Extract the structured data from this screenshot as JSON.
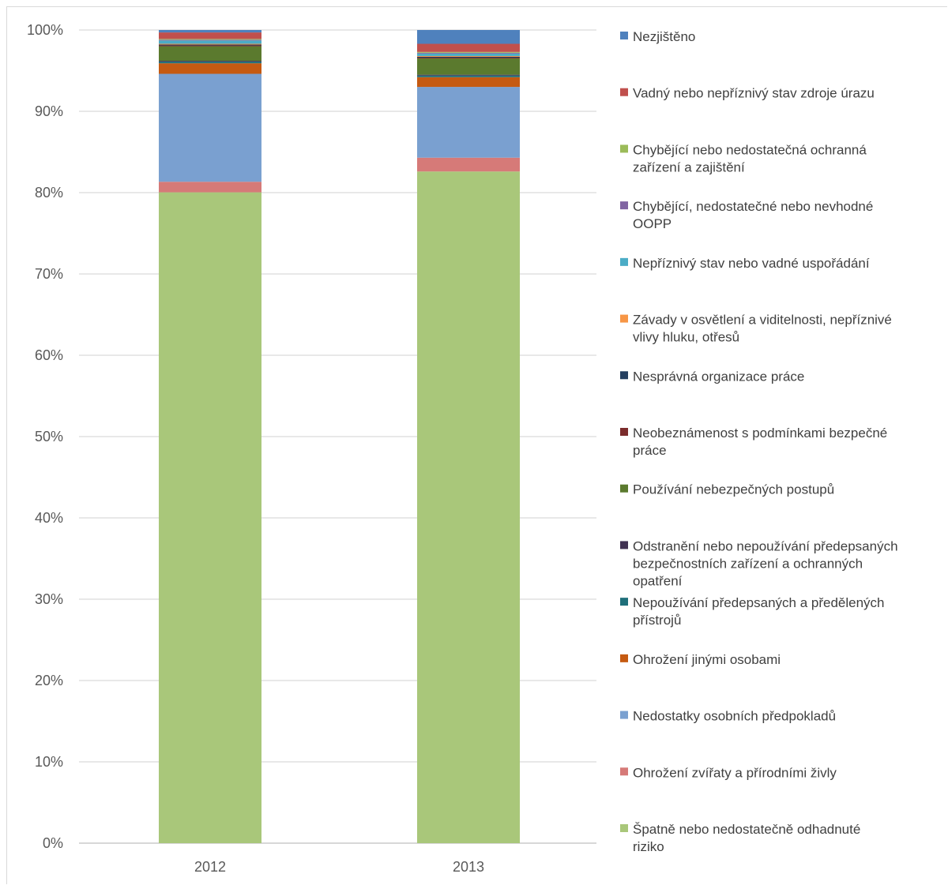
{
  "chart_data": {
    "type": "bar",
    "stacked": true,
    "normalized": true,
    "categories": [
      "2012",
      "2013"
    ],
    "y_ticks": [
      "0%",
      "10%",
      "20%",
      "30%",
      "40%",
      "50%",
      "60%",
      "70%",
      "80%",
      "90%",
      "100%"
    ],
    "ylim": [
      0,
      100
    ],
    "grid": true,
    "legend_position": "right",
    "series": [
      {
        "name": "Špatně nebo nedostatečně odhadnuté riziko",
        "legend_lines": [
          "Špatně nebo nedostatečně odhadnuté",
          "riziko"
        ],
        "color": "#a9c77a",
        "values": [
          80.2,
          82.6
        ]
      },
      {
        "name": "Ohrožení zvířaty a přírodními živly",
        "legend_lines": [
          "Ohrožení zvířaty a přírodními živly"
        ],
        "color": "#d67a78",
        "values": [
          1.3,
          1.7
        ]
      },
      {
        "name": "Nedostatky osobních předpokladů",
        "legend_lines": [
          "Nedostatky osobních předpokladů"
        ],
        "color": "#7aa0d0",
        "values": [
          13.3,
          8.7
        ]
      },
      {
        "name": "Ohrožení jinými osobami",
        "legend_lines": [
          "Ohrožení jinými osobami"
        ],
        "color": "#c55a11",
        "values": [
          1.3,
          1.2
        ]
      },
      {
        "name": "Nepoužívání předepsaných a předělených přístrojů",
        "legend_lines": [
          "Nepoužívání předepsaných a předělených",
          "přístrojů"
        ],
        "color": "#1f6f7a",
        "values": [
          0.2,
          0.2
        ]
      },
      {
        "name": "Odstranění nebo nepoužívání předepsaných bezpečnostních zařízení a ochranných opatření",
        "legend_lines": [
          "Odstranění nebo nepoužívání předepsaných",
          "bezpečnostních zařízení a ochranných",
          "opatření"
        ],
        "color": "#403152",
        "values": [
          0.1,
          0.1
        ]
      },
      {
        "name": "Používání nebezpečných postupů",
        "legend_lines": [
          "Používání nebezpečných postupů"
        ],
        "color": "#5b7a2e",
        "values": [
          1.8,
          2.0
        ]
      },
      {
        "name": "Neobeznámenost s podmínkami bezpečné práce",
        "legend_lines": [
          "Neobeznámenost s podmínkami bezpečné",
          "práce"
        ],
        "color": "#7b2c2c",
        "values": [
          0.1,
          0.1
        ]
      },
      {
        "name": "Nesprávná organizace práce",
        "legend_lines": [
          "Nesprávná organizace práce"
        ],
        "color": "#243f60",
        "values": [
          0.1,
          0.1
        ]
      },
      {
        "name": "Závady v osvětlení a viditelnosti, nepříznivé vlivy hluku, otřesů",
        "legend_lines": [
          "Závady v osvětlení a viditelnosti, nepříznivé",
          "vlivy hluku, otřesů"
        ],
        "color": "#f79646",
        "values": [
          0.1,
          0.1
        ]
      },
      {
        "name": "Nepříznivý stav nebo vadné uspořádání",
        "legend_lines": [
          "Nepříznivý stav nebo vadné uspořádání"
        ],
        "color": "#4bacc6",
        "values": [
          0.4,
          0.3
        ]
      },
      {
        "name": "Chybějící, nedostatečné nebo nevhodné OOPP",
        "legend_lines": [
          "Chybějící, nedostatečné nebo nevhodné",
          "OOPP"
        ],
        "color": "#8064a2",
        "values": [
          0.1,
          0.1
        ]
      },
      {
        "name": "Chybějící nebo nedostatečná ochranná zařízení a zajištění",
        "legend_lines": [
          "Chybějící nebo nedostatečná ochranná",
          "zařízení a zajištění"
        ],
        "color": "#9bbb59",
        "values": [
          0.1,
          0.1
        ]
      },
      {
        "name": "Vadný nebo nepříznivý stav zdroje úrazu",
        "legend_lines": [
          "Vadný nebo nepříznivý stav zdroje úrazu"
        ],
        "color": "#c0504d",
        "values": [
          0.8,
          1.0
        ]
      },
      {
        "name": "Nezjištěno",
        "legend_lines": [
          "Nezjištěno"
        ],
        "color": "#4f81bd",
        "values": [
          0.3,
          1.7
        ]
      }
    ]
  }
}
